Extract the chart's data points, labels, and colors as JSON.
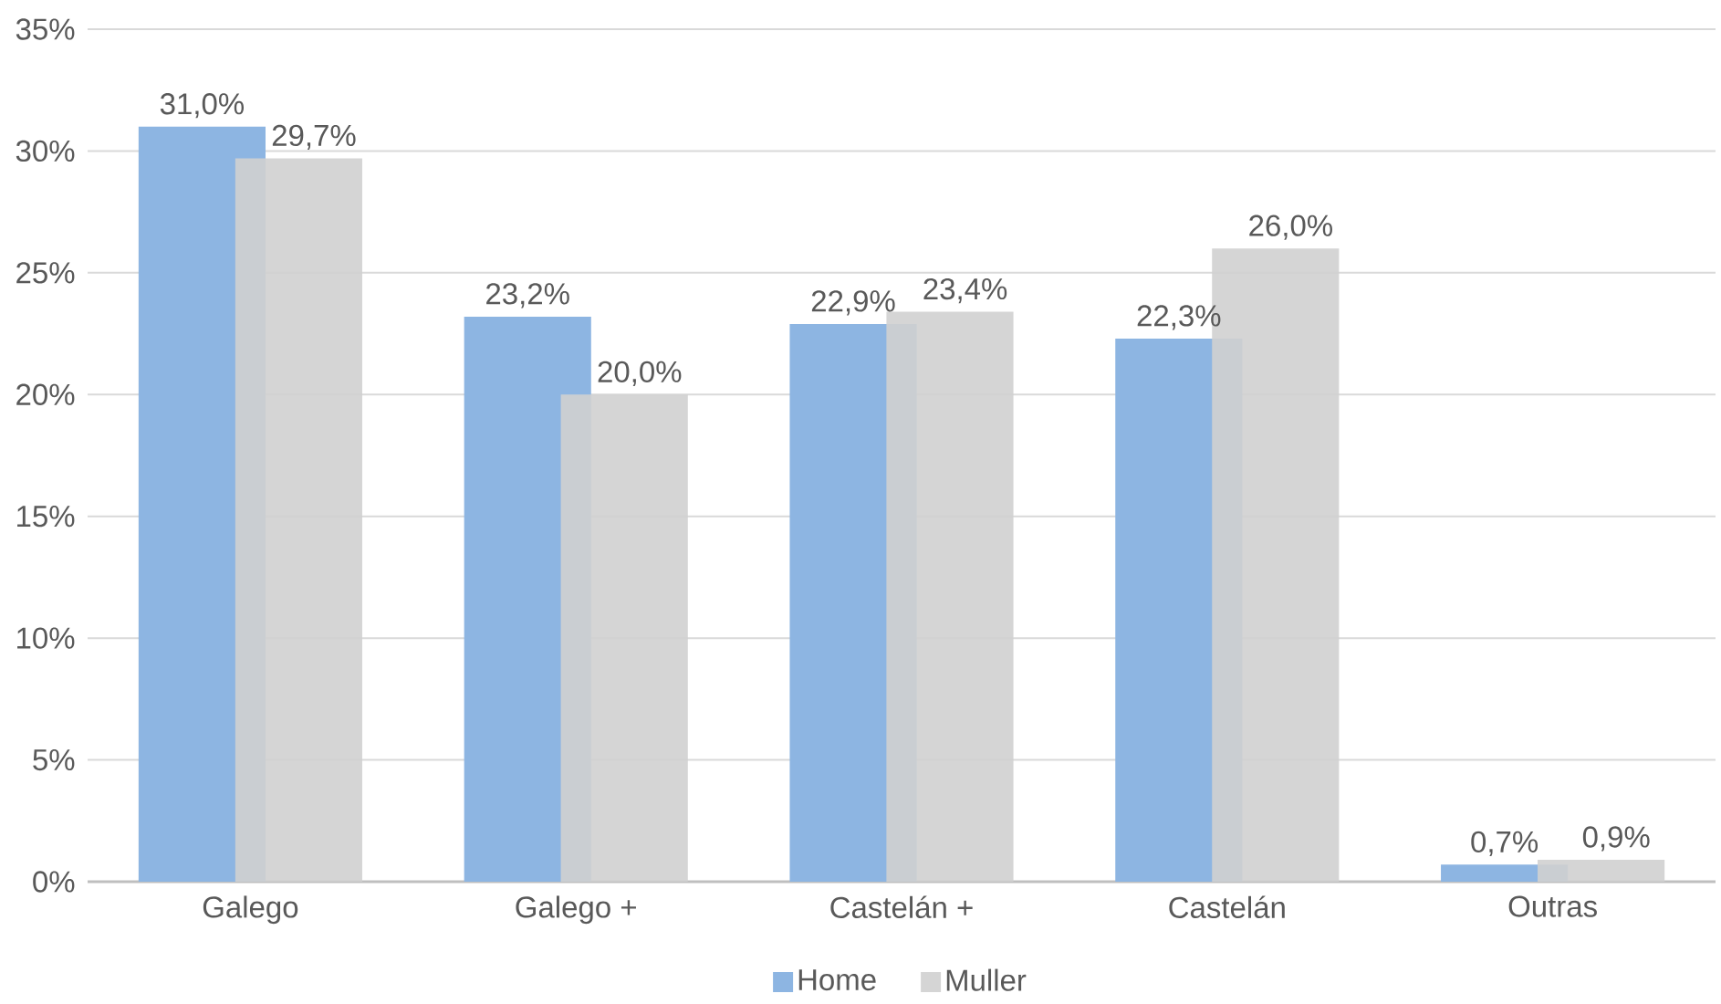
{
  "chart_data": {
    "type": "bar",
    "categories": [
      "Galego",
      "Galego +",
      "Castelán +",
      "Castelán",
      "Outras"
    ],
    "series": [
      {
        "name": "Home",
        "color": "#8db5e2",
        "values": [
          31.0,
          23.2,
          22.9,
          22.3,
          0.7
        ],
        "value_labels": [
          "31,0%",
          "23,2%",
          "22,9%",
          "22,3%",
          "0,7%"
        ]
      },
      {
        "name": "Muller",
        "color": "#d0d0d0",
        "values": [
          29.7,
          20.0,
          23.4,
          26.0,
          0.9
        ],
        "value_labels": [
          "29,7%",
          "20,0%",
          "23,4%",
          "26,0%",
          "0,9%"
        ]
      }
    ],
    "ylim": [
      0,
      35
    ],
    "yticks": [
      {
        "value": 0,
        "label": "0%"
      },
      {
        "value": 5,
        "label": "5%"
      },
      {
        "value": 10,
        "label": "10%"
      },
      {
        "value": 15,
        "label": "15%"
      },
      {
        "value": 20,
        "label": "20%"
      },
      {
        "value": 25,
        "label": "25%"
      },
      {
        "value": 30,
        "label": "30%"
      },
      {
        "value": 35,
        "label": "35%"
      }
    ],
    "grid": "y",
    "legend": "bottom"
  }
}
